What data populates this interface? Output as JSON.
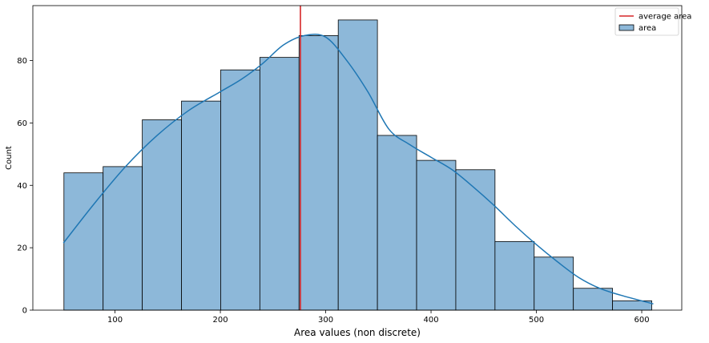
{
  "chart_data": {
    "type": "bar",
    "subtype": "histogram-with-kde",
    "xlabel": "Area values (non discrete)",
    "ylabel": "Count",
    "xlim": [
      22,
      638
    ],
    "ylim": [
      0,
      97.6
    ],
    "xticks": [
      100,
      200,
      300,
      400,
      500,
      600
    ],
    "yticks": [
      0,
      20,
      40,
      60,
      80
    ],
    "grid": false,
    "legend_position": "top-right",
    "bins": {
      "start": 51.5,
      "width": 37.2,
      "counts": [
        44,
        46,
        61,
        67,
        77,
        81,
        88,
        93,
        56,
        48,
        45,
        22,
        17,
        7,
        3
      ]
    },
    "average_line": {
      "name": "average area",
      "x": 276,
      "color": "#d62728"
    },
    "kde": {
      "name": "area",
      "x": [
        51,
        80,
        110,
        140,
        170,
        200,
        220,
        240,
        260,
        280,
        300,
        320,
        340,
        360,
        380,
        400,
        420,
        440,
        460,
        480,
        500,
        520,
        540,
        560,
        580,
        611
      ],
      "y": [
        21.5,
        34,
        46,
        56,
        64,
        70,
        74,
        79,
        85,
        88,
        87.5,
        80,
        70,
        58,
        53,
        49,
        45,
        39.5,
        33.5,
        27,
        21,
        15.5,
        10.5,
        7,
        4.8,
        2
      ]
    },
    "legend": [
      {
        "label": "average area",
        "kind": "line",
        "color": "#d62728"
      },
      {
        "label": "area",
        "kind": "patch",
        "color": "#8db8d9"
      }
    ],
    "colors": {
      "bar_fill": "#8db8d9",
      "bar_edge": "#000000",
      "kde_line": "#1f77b4",
      "average_line": "#d62728"
    }
  }
}
